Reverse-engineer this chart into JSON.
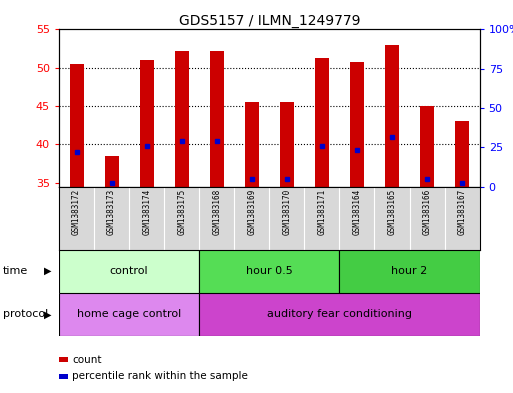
{
  "title": "GDS5157 / ILMN_1249779",
  "samples": [
    "GSM1383172",
    "GSM1383173",
    "GSM1383174",
    "GSM1383175",
    "GSM1383168",
    "GSM1383169",
    "GSM1383170",
    "GSM1383171",
    "GSM1383164",
    "GSM1383165",
    "GSM1383166",
    "GSM1383167"
  ],
  "count_values": [
    50.5,
    38.5,
    51.0,
    52.2,
    52.2,
    45.6,
    45.5,
    51.3,
    50.7,
    53.0,
    45.0,
    43.0
  ],
  "percentile_values": [
    39.0,
    35.0,
    39.8,
    40.5,
    40.5,
    35.5,
    35.5,
    39.8,
    39.3,
    41.0,
    35.5,
    35.0
  ],
  "ylim_left": [
    34.5,
    55
  ],
  "ylim_right": [
    0,
    100
  ],
  "yticks_left": [
    35,
    40,
    45,
    50,
    55
  ],
  "yticks_right": [
    0,
    25,
    50,
    75,
    100
  ],
  "ytick_labels_right": [
    "0",
    "25",
    "50",
    "75",
    "100%"
  ],
  "bar_color": "#cc0000",
  "marker_color": "#0000cc",
  "time_groups": [
    {
      "label": "control",
      "start": 0,
      "end": 4,
      "color": "#ccffcc"
    },
    {
      "label": "hour 0.5",
      "start": 4,
      "end": 8,
      "color": "#55dd55"
    },
    {
      "label": "hour 2",
      "start": 8,
      "end": 12,
      "color": "#44cc44"
    }
  ],
  "protocol_groups": [
    {
      "label": "home cage control",
      "start": 0,
      "end": 4,
      "color": "#dd88ee"
    },
    {
      "label": "auditory fear conditioning",
      "start": 4,
      "end": 12,
      "color": "#cc44cc"
    }
  ],
  "background_color": "#ffffff",
  "bar_width": 0.4,
  "time_label": "time",
  "protocol_label": "protocol",
  "legend_count": "count",
  "legend_percentile": "percentile rank within the sample",
  "title_fontsize": 10,
  "axis_tick_fontsize": 8,
  "sample_fontsize": 5.5,
  "row_fontsize": 8,
  "legend_fontsize": 7.5
}
